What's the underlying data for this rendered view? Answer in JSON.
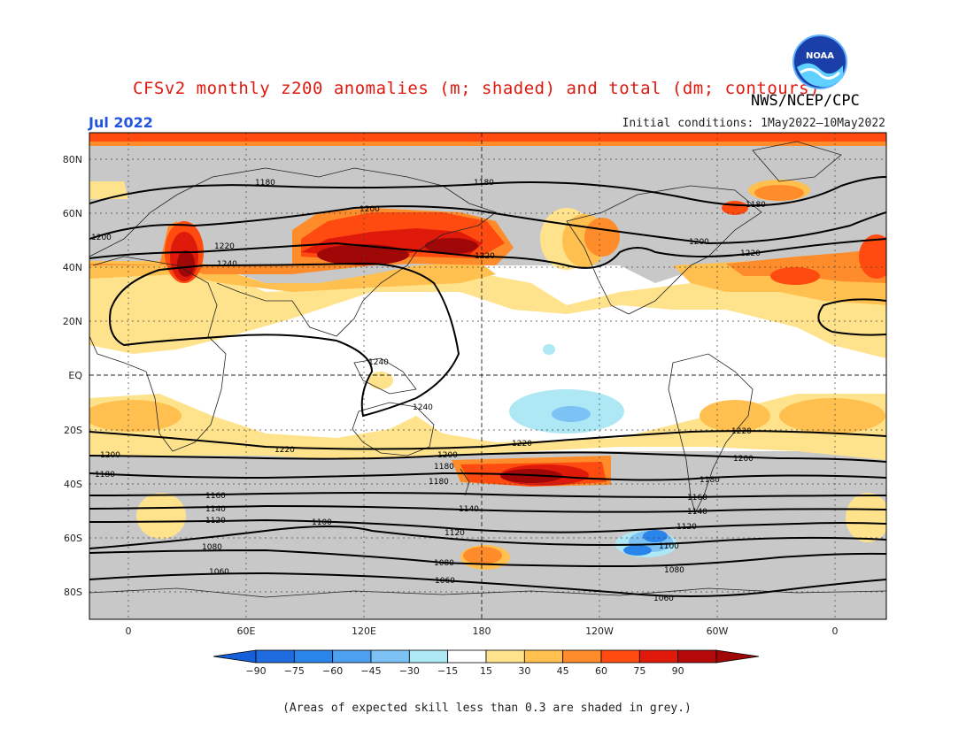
{
  "header": {
    "title": "CFSv2 monthly z200 anomalies (m; shaded) and total (dm; contours)",
    "agency": "NWS/NCEP/CPC",
    "month": "Jul 2022",
    "initial_conditions": "Initial conditions: 1May2022–10May2022",
    "logo_text": "NOAA"
  },
  "map": {
    "lat_labels": [
      "80N",
      "60N",
      "40N",
      "20N",
      "EQ",
      "20S",
      "40S",
      "60S",
      "80S"
    ],
    "lon_labels": [
      "0",
      "60E",
      "120E",
      "180",
      "120W",
      "60W",
      "0"
    ],
    "skill_mask_color": "#c8c8c8"
  },
  "contours": [
    {
      "value": "1180",
      "label": "1180"
    },
    {
      "value": "1200",
      "label": "1200"
    },
    {
      "value": "1220",
      "label": "1220"
    },
    {
      "value": "1240",
      "label": "1240"
    },
    {
      "value": "1160",
      "label": "1160"
    },
    {
      "value": "1140",
      "label": "1140"
    },
    {
      "value": "1120",
      "label": "1120"
    },
    {
      "value": "1100",
      "label": "1100"
    },
    {
      "value": "1080",
      "label": "1080"
    },
    {
      "value": "1060",
      "label": "1060"
    }
  ],
  "colorbar": {
    "ticks": [
      "−90",
      "−75",
      "−60",
      "−45",
      "−30",
      "−15",
      "15",
      "30",
      "45",
      "60",
      "75",
      "90"
    ],
    "colors": [
      "#1f6be0",
      "#2a85ea",
      "#4d9ff0",
      "#7cc2f5",
      "#aee8f5",
      "#ffffff",
      "#ffe38c",
      "#ffc04f",
      "#ff8c2a",
      "#ff4a10",
      "#e01a0a",
      "#b50a0a"
    ],
    "low_end_color": "#1560d8",
    "high_end_color": "#a00808"
  },
  "footnote": "(Areas of expected skill less than 0.3 are shaded in grey.)"
}
